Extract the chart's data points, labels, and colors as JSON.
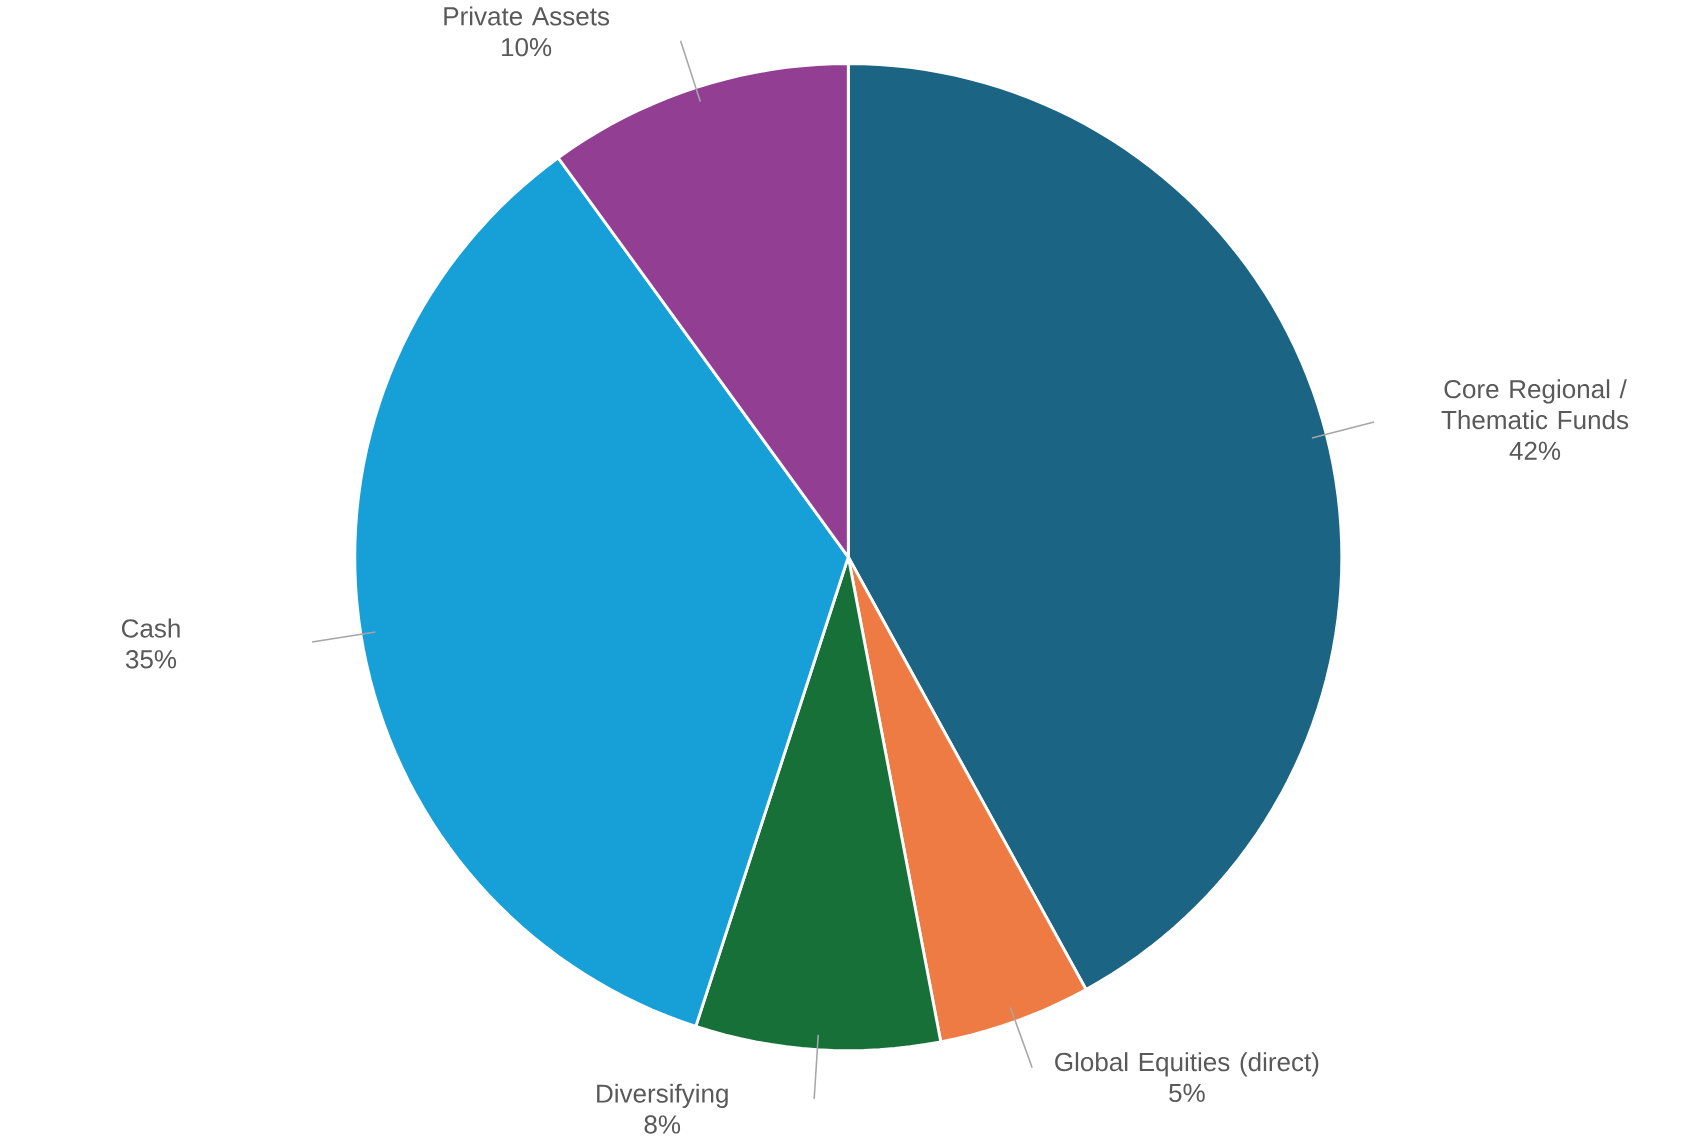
{
  "chart_data": {
    "type": "pie",
    "categories": [
      "Core Regional / Thematic Funds",
      "Global Equities (direct)",
      "Diversifying",
      "Cash",
      "Private Assets"
    ],
    "values": [
      42,
      5,
      8,
      35,
      10
    ],
    "value_labels": [
      "42%",
      "5%",
      "8%",
      "35%",
      "10%"
    ],
    "colors": [
      "#1b6484",
      "#ee7b43",
      "#177038",
      "#17a0d7",
      "#913e93"
    ]
  }
}
